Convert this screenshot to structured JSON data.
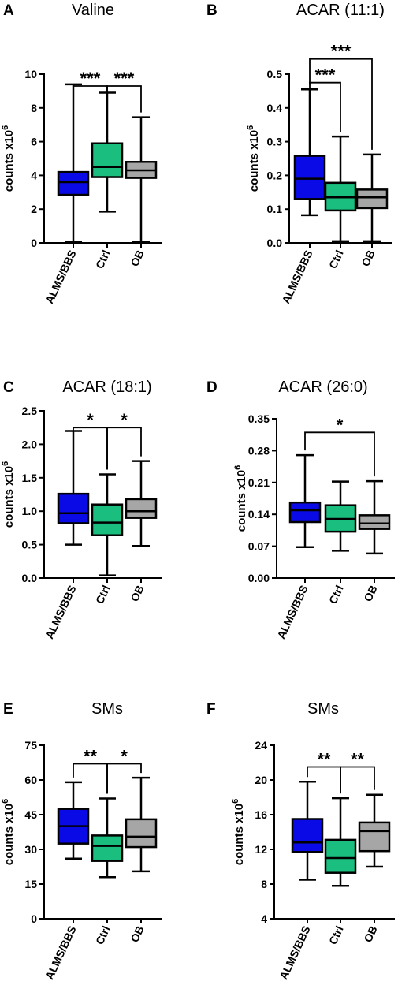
{
  "colors": {
    "ALMS/BBS": "#0a0ae6",
    "Ctrl": "#1abf7f",
    "OB": "#a6a6a6"
  },
  "chart_data": [
    {
      "panel": "A",
      "title": "Valine",
      "type": "box",
      "ylabel": "counts x10^6",
      "ylim": [
        0,
        10
      ],
      "yticks": [
        "0",
        "2",
        "4",
        "6",
        "8",
        "10"
      ],
      "categories": [
        "ALMS/BBS",
        "Ctrl",
        "OB"
      ],
      "boxes": [
        {
          "min": 0.05,
          "q1": 2.85,
          "median": 3.6,
          "q3": 4.2,
          "max": 9.4
        },
        {
          "min": 1.85,
          "q1": 3.9,
          "median": 4.5,
          "q3": 5.9,
          "max": 8.9
        },
        {
          "min": 0.05,
          "q1": 3.85,
          "median": 4.3,
          "q3": 4.8,
          "max": 7.45
        }
      ],
      "comparisons": [
        {
          "from": 0,
          "to": 1,
          "label": "***",
          "y": 9.3
        },
        {
          "from": 1,
          "to": 2,
          "label": "***",
          "y": 9.3
        }
      ]
    },
    {
      "panel": "B",
      "title": "ACAR (11:1)",
      "type": "box",
      "ylabel": "counts x10^6",
      "ylim": [
        0,
        0.5
      ],
      "yticks": [
        "0.0",
        "0.1",
        "0.2",
        "0.3",
        "0.4",
        "0.5"
      ],
      "categories": [
        "ALMS/BBS",
        "Ctrl",
        "OB"
      ],
      "boxes": [
        {
          "min": 0.082,
          "q1": 0.13,
          "median": 0.19,
          "q3": 0.258,
          "max": 0.455
        },
        {
          "min": 0.005,
          "q1": 0.096,
          "median": 0.135,
          "q3": 0.178,
          "max": 0.315
        },
        {
          "min": 0.005,
          "q1": 0.103,
          "median": 0.135,
          "q3": 0.158,
          "max": 0.262
        }
      ],
      "comparisons": [
        {
          "from": 0,
          "to": 1,
          "label": "***",
          "y": 0.475
        },
        {
          "from": 0,
          "to": 2,
          "label": "***",
          "y": 0.545
        }
      ]
    },
    {
      "panel": "C",
      "title": "ACAR (18:1)",
      "type": "box",
      "ylabel": "counts x10^6",
      "ylim": [
        0,
        2.5
      ],
      "yticks": [
        "0.0",
        "0.5",
        "1.0",
        "1.5",
        "2.0",
        "2.5"
      ],
      "categories": [
        "ALMS/BBS",
        "Ctrl",
        "OB"
      ],
      "boxes": [
        {
          "min": 0.5,
          "q1": 0.82,
          "median": 0.97,
          "q3": 1.26,
          "max": 2.2
        },
        {
          "min": 0.04,
          "q1": 0.64,
          "median": 0.83,
          "q3": 1.1,
          "max": 1.55
        },
        {
          "min": 0.48,
          "q1": 0.9,
          "median": 1.0,
          "q3": 1.18,
          "max": 1.75
        }
      ],
      "comparisons": [
        {
          "from": 0,
          "to": 1,
          "label": "*",
          "y": 2.25
        },
        {
          "from": 1,
          "to": 2,
          "label": "*",
          "y": 2.25
        }
      ]
    },
    {
      "panel": "D",
      "title": "ACAR (26:0)",
      "type": "box",
      "ylabel": "counts x10^6",
      "ylim": [
        0,
        0.35
      ],
      "yticks": [
        "0.00",
        "0.07",
        "0.14",
        "0.21",
        "0.28",
        "0.35"
      ],
      "categories": [
        "ALMS/BBS",
        "Ctrl",
        "OB"
      ],
      "boxes": [
        {
          "min": 0.068,
          "q1": 0.123,
          "median": 0.149,
          "q3": 0.166,
          "max": 0.27
        },
        {
          "min": 0.06,
          "q1": 0.102,
          "median": 0.13,
          "q3": 0.16,
          "max": 0.212
        },
        {
          "min": 0.054,
          "q1": 0.108,
          "median": 0.12,
          "q3": 0.138,
          "max": 0.213
        }
      ],
      "comparisons": [
        {
          "from": 0,
          "to": 2,
          "label": "*",
          "y": 0.32
        }
      ]
    },
    {
      "panel": "E",
      "title": "SMs",
      "type": "box",
      "ylabel": "counts x10^6",
      "ylim": [
        0,
        75
      ],
      "yticks": [
        "0",
        "15",
        "30",
        "45",
        "60",
        "75"
      ],
      "categories": [
        "ALMS/BBS",
        "Ctrl",
        "OB"
      ],
      "boxes": [
        {
          "min": 26,
          "q1": 32.5,
          "median": 40,
          "q3": 47.5,
          "max": 59
        },
        {
          "min": 18,
          "q1": 25,
          "median": 31.5,
          "q3": 36,
          "max": 52
        },
        {
          "min": 20.5,
          "q1": 31,
          "median": 35.5,
          "q3": 43,
          "max": 61
        }
      ],
      "comparisons": [
        {
          "from": 0,
          "to": 1,
          "label": "**",
          "y": 67
        },
        {
          "from": 1,
          "to": 2,
          "label": "*",
          "y": 67
        }
      ]
    },
    {
      "panel": "F",
      "title": "SMs",
      "type": "box",
      "ylabel": "counts x10^6",
      "ylim": [
        4,
        24
      ],
      "yticks": [
        "4",
        "8",
        "12",
        "16",
        "20",
        "24"
      ],
      "categories": [
        "ALMS/BBS",
        "Ctrl",
        "OB"
      ],
      "boxes": [
        {
          "min": 8.5,
          "q1": 11.7,
          "median": 12.8,
          "q3": 15.5,
          "max": 19.8
        },
        {
          "min": 7.8,
          "q1": 9.3,
          "median": 11,
          "q3": 13.1,
          "max": 17.9
        },
        {
          "min": 10,
          "q1": 11.8,
          "median": 14.1,
          "q3": 15.1,
          "max": 18.3
        }
      ],
      "comparisons": [
        {
          "from": 0,
          "to": 1,
          "label": "**",
          "y": 21.5
        },
        {
          "from": 1,
          "to": 2,
          "label": "**",
          "y": 21.5
        }
      ]
    }
  ]
}
